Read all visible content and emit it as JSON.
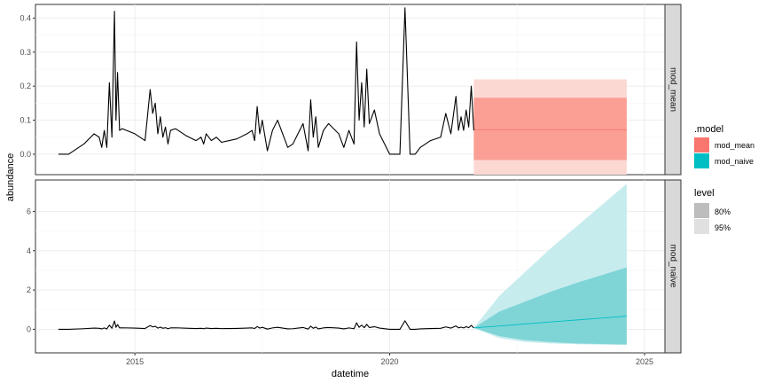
{
  "chart_data": {
    "type": "line",
    "xlabel": "datetime",
    "ylabel": "abundance",
    "x_ticks": [
      2015,
      2020,
      2025
    ],
    "facets": [
      {
        "label": "mod_mean",
        "ylim": [
          -0.06,
          0.44
        ],
        "y_ticks": [
          0.0,
          0.1,
          0.2,
          0.3,
          0.4
        ],
        "y_tick_labels": [
          "0.0",
          "0.1",
          "0.2",
          "0.3",
          "0.4"
        ],
        "history": {
          "x": [
            2013.5,
            2013.7,
            2014.0,
            2014.2,
            2014.3,
            2014.35,
            2014.4,
            2014.45,
            2014.5,
            2014.55,
            2014.6,
            2014.63,
            2014.66,
            2014.7,
            2014.75,
            2015.0,
            2015.2,
            2015.3,
            2015.35,
            2015.4,
            2015.45,
            2015.5,
            2015.55,
            2015.6,
            2015.65,
            2015.7,
            2015.8,
            2016.0,
            2016.2,
            2016.3,
            2016.35,
            2016.4,
            2016.5,
            2016.6,
            2016.7,
            2017.0,
            2017.2,
            2017.3,
            2017.35,
            2017.4,
            2017.45,
            2017.5,
            2017.6,
            2017.7,
            2017.8,
            2018.0,
            2018.1,
            2018.2,
            2018.3,
            2018.4,
            2018.45,
            2018.5,
            2018.55,
            2018.6,
            2018.7,
            2018.8,
            2019.0,
            2019.1,
            2019.2,
            2019.3,
            2019.35,
            2019.4,
            2019.45,
            2019.5,
            2019.55,
            2019.6,
            2019.7,
            2019.8,
            2020.0,
            2020.2,
            2020.3,
            2020.4,
            2020.45,
            2020.5,
            2020.6,
            2020.8,
            2021.0,
            2021.1,
            2021.2,
            2021.3,
            2021.35,
            2021.4,
            2021.45,
            2021.5,
            2021.55,
            2021.6,
            2021.65
          ],
          "y": [
            0.0,
            0.0,
            0.03,
            0.06,
            0.05,
            0.02,
            0.07,
            0.02,
            0.21,
            0.05,
            0.42,
            0.1,
            0.24,
            0.07,
            0.075,
            0.06,
            0.04,
            0.19,
            0.12,
            0.15,
            0.06,
            0.11,
            0.05,
            0.08,
            0.03,
            0.07,
            0.075,
            0.055,
            0.04,
            0.05,
            0.03,
            0.06,
            0.04,
            0.05,
            0.035,
            0.045,
            0.06,
            0.07,
            0.04,
            0.14,
            0.06,
            0.1,
            0.01,
            0.07,
            0.1,
            0.02,
            0.03,
            0.06,
            0.09,
            0.01,
            0.16,
            0.05,
            0.11,
            0.02,
            0.07,
            0.09,
            0.06,
            0.02,
            0.07,
            0.03,
            0.33,
            0.1,
            0.21,
            0.08,
            0.25,
            0.09,
            0.13,
            0.06,
            0.0,
            0.0,
            0.43,
            0.0,
            0.0,
            0.0,
            0.02,
            0.04,
            0.05,
            0.12,
            0.06,
            0.17,
            0.07,
            0.11,
            0.07,
            0.13,
            0.08,
            0.2,
            0.07
          ]
        },
        "forecast": {
          "x": [
            2021.65,
            2024.65
          ],
          "mean": [
            0.072,
            0.072
          ],
          "lower_80": [
            -0.017,
            -0.017
          ],
          "upper_80": [
            0.166,
            0.166
          ],
          "lower_95": [
            -0.06,
            -0.06
          ],
          "upper_95": [
            0.22,
            0.22
          ]
        }
      },
      {
        "label": "mod_naive",
        "ylim": [
          -1.2,
          7.6
        ],
        "y_ticks": [
          0,
          2,
          4,
          6
        ],
        "y_tick_labels": [
          "0",
          "2",
          "4",
          "6"
        ],
        "history_from_facet": 0,
        "forecast": {
          "x": [
            2021.65,
            2022.15,
            2022.65,
            2023.15,
            2023.65,
            2024.15,
            2024.65
          ],
          "mean": [
            0.07,
            0.17,
            0.27,
            0.37,
            0.47,
            0.57,
            0.67
          ],
          "lower_80": [
            0.07,
            -0.35,
            -0.55,
            -0.65,
            -0.72,
            -0.75,
            -0.77
          ],
          "upper_80": [
            0.07,
            0.9,
            1.4,
            1.9,
            2.35,
            2.75,
            3.15
          ],
          "lower_95": [
            0.07,
            -0.45,
            -0.65,
            -0.72,
            -0.76,
            -0.78,
            -0.8
          ],
          "upper_95": [
            0.07,
            1.7,
            2.9,
            4.1,
            5.2,
            6.3,
            7.4
          ]
        }
      }
    ],
    "legend": {
      "placement": "right",
      "model": {
        "title": ".model",
        "entries": [
          {
            "label": "mod_mean",
            "color": "#f8766d"
          },
          {
            "label": "mod_naive",
            "color": "#00bfc4"
          }
        ]
      },
      "level": {
        "title": "level",
        "entries": [
          {
            "label": "80%",
            "color": "#bdbdbd"
          },
          {
            "label": "95%",
            "color": "#e0e0e0"
          }
        ]
      }
    },
    "colors": {
      "mean_band_80": "#fb9f95",
      "mean_band_95": "#fcd8d3",
      "naive_band_80": "#7fd4d6",
      "naive_band_95": "#c7ecee",
      "mean_line": "#f8766d",
      "naive_line": "#00bfc4",
      "history_line": "#000000"
    },
    "grid": true
  }
}
